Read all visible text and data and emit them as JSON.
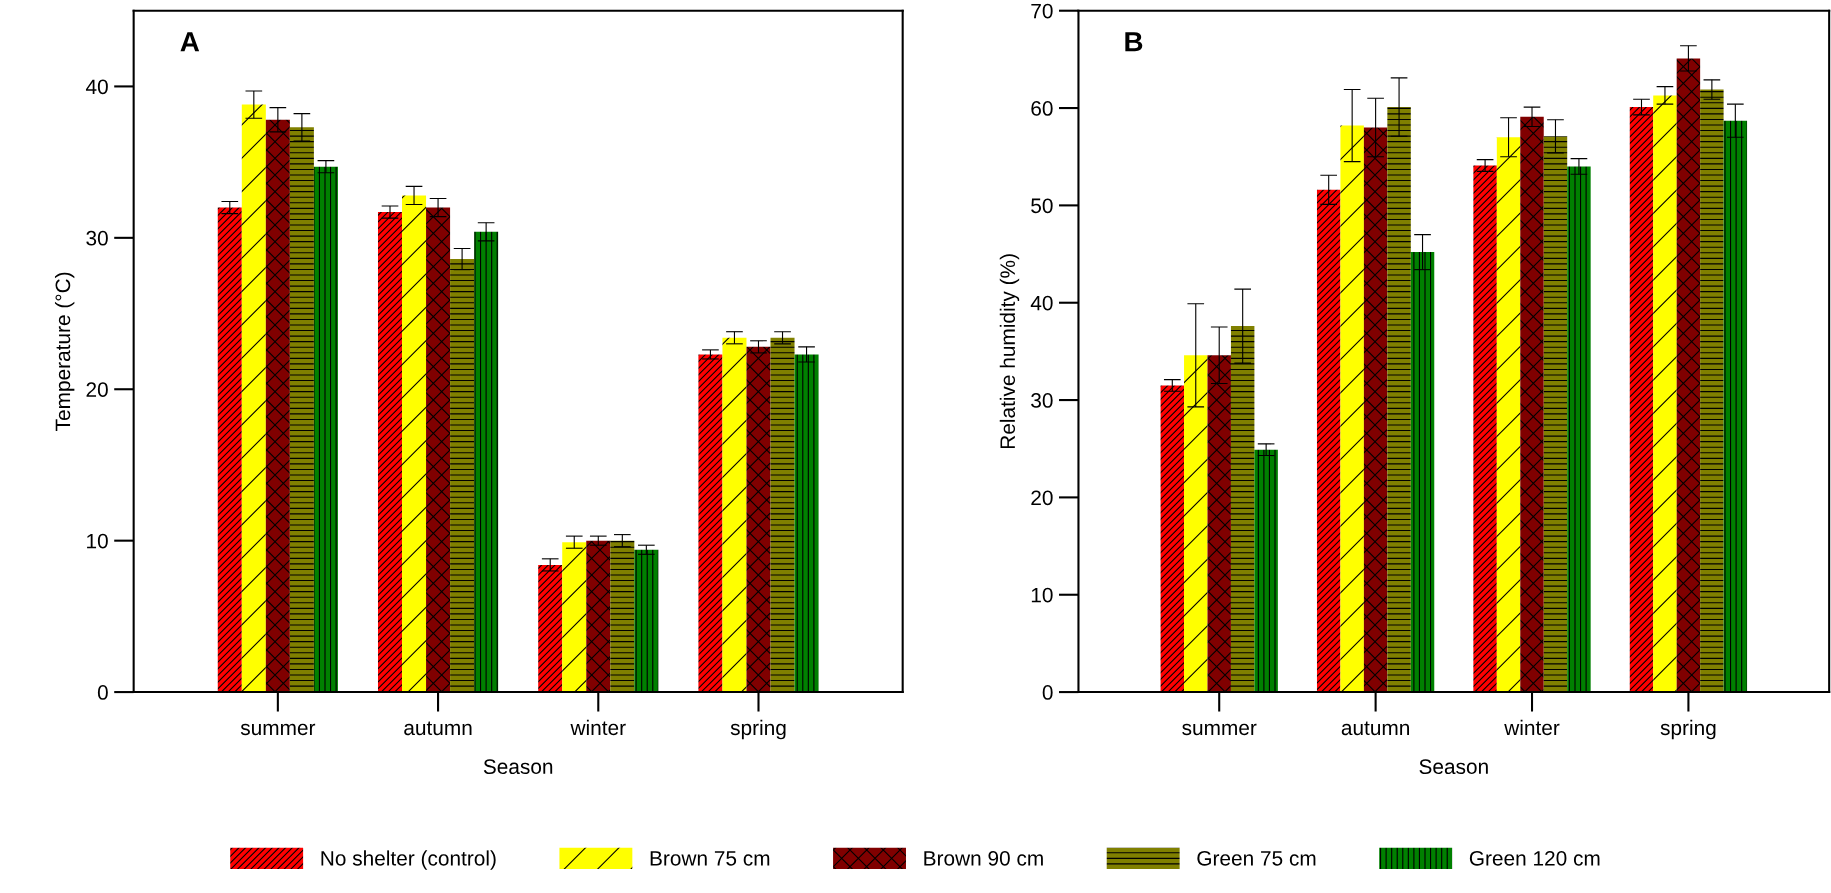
{
  "chart_data": [
    {
      "type": "bar",
      "annotations": [
        "A"
      ],
      "xlabel": "Season",
      "ylabel": "Temperature (°C)",
      "categories": [
        "summer",
        "autumn",
        "winter",
        "spring"
      ],
      "ylim": [
        0,
        45
      ],
      "yticks": [
        0,
        10,
        20,
        30,
        40
      ],
      "grid": false,
      "legend": "bottom",
      "series": [
        {
          "name": "No shelter (control)",
          "color": "#ff0000",
          "values": [
            32.0,
            31.7,
            8.4,
            22.3
          ],
          "errors": [
            0.4,
            0.4,
            0.4,
            0.3
          ]
        },
        {
          "name": "Brown 75 cm",
          "color": "#ffff00",
          "values": [
            38.8,
            32.8,
            9.9,
            23.4
          ],
          "errors": [
            0.9,
            0.6,
            0.4,
            0.4
          ]
        },
        {
          "name": "Brown 90 cm",
          "color": "#800000",
          "values": [
            37.8,
            32.0,
            10.0,
            22.8
          ],
          "errors": [
            0.8,
            0.6,
            0.3,
            0.4
          ]
        },
        {
          "name": "Green 75 cm",
          "color": "#808000",
          "values": [
            37.3,
            28.6,
            10.0,
            23.4
          ],
          "errors": [
            0.9,
            0.7,
            0.4,
            0.4
          ]
        },
        {
          "name": "Green 120 cm",
          "color": "#008000",
          "values": [
            34.7,
            30.4,
            9.4,
            22.3
          ],
          "errors": [
            0.4,
            0.6,
            0.3,
            0.5
          ]
        }
      ]
    },
    {
      "type": "bar",
      "annotations": [
        "B"
      ],
      "xlabel": "Season",
      "ylabel": "Relative humidity (%)",
      "categories": [
        "summer",
        "autumn",
        "winter",
        "spring"
      ],
      "ylim": [
        0,
        70
      ],
      "yticks": [
        0,
        10,
        20,
        30,
        40,
        50,
        60,
        70
      ],
      "grid": false,
      "series": [
        {
          "color": "#ff0000",
          "values": [
            31.5,
            51.6,
            54.1,
            60.1
          ],
          "errors": [
            0.6,
            1.5,
            0.6,
            0.8
          ]
        },
        {
          "color": "#ffff00",
          "values": [
            34.6,
            58.2,
            57.0,
            61.3
          ],
          "errors": [
            5.3,
            3.7,
            2.0,
            0.9
          ]
        },
        {
          "color": "#800000",
          "values": [
            34.6,
            58.0,
            59.1,
            65.1
          ],
          "errors": [
            2.9,
            3.0,
            1.0,
            1.3
          ]
        },
        {
          "color": "#808000",
          "values": [
            37.6,
            60.1,
            57.1,
            61.9
          ],
          "errors": [
            3.8,
            3.0,
            1.7,
            1.0
          ]
        },
        {
          "color": "#008000",
          "values": [
            24.9,
            45.2,
            54.0,
            58.7
          ],
          "errors": [
            0.6,
            1.8,
            0.8,
            1.7
          ]
        }
      ]
    }
  ]
}
